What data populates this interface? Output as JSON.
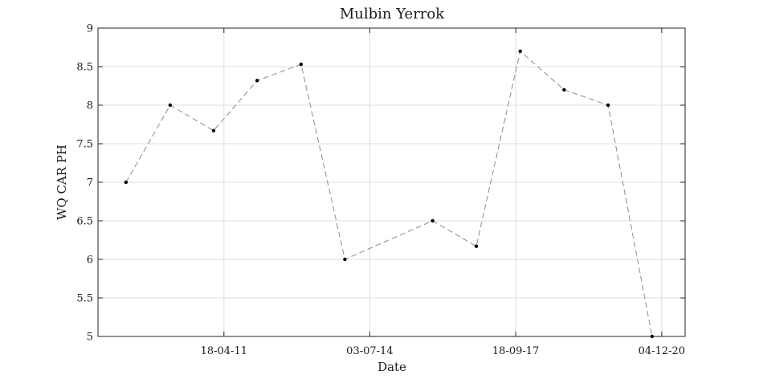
{
  "chart_data": {
    "type": "line",
    "title": "Mulbin Yerrok",
    "xlabel": "Date",
    "ylabel": "WQ CAR PH",
    "ylim": [
      5,
      9
    ],
    "yticks": [
      "5",
      "5.5",
      "6",
      "6.5",
      "7",
      "7.5",
      "8",
      "8.5",
      "9"
    ],
    "xlim": [
      "2008-07-10",
      "2021-06-10"
    ],
    "xticks": [
      "18-04-11",
      "03-07-14",
      "18-09-17",
      "04-12-20"
    ],
    "xtick_dates": [
      "2011-04-18",
      "2014-07-03",
      "2017-09-18",
      "2020-12-04"
    ],
    "grid": true,
    "series": [
      {
        "line_style": "dashed",
        "line_color": "#8c8c8c",
        "marker_color": "#000000",
        "x": [
          "2009-02-20",
          "2010-02-10",
          "2011-01-25",
          "2012-01-10",
          "2012-12-28",
          "2013-12-15",
          "2015-11-20",
          "2016-11-05",
          "2017-10-24",
          "2018-10-12",
          "2019-09-30",
          "2020-09-18"
        ],
        "values": [
          7.0,
          8.0,
          7.67,
          8.32,
          8.53,
          6.0,
          6.5,
          6.17,
          8.7,
          8.2,
          8.0,
          5.0
        ]
      }
    ]
  }
}
